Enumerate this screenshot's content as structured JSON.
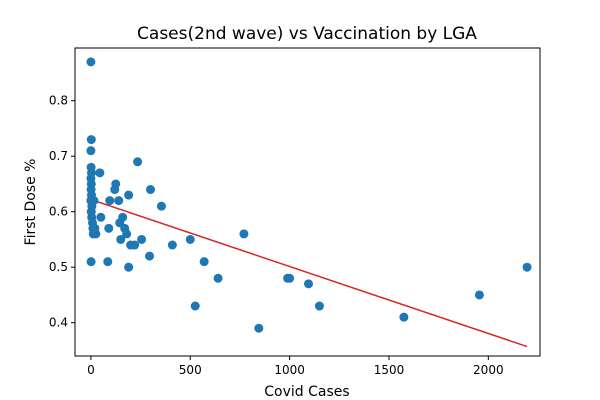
{
  "chart_data": {
    "type": "scatter",
    "title": "Cases(2nd wave) vs Vaccination by LGA",
    "xlabel": "Covid Cases",
    "ylabel": "First Dose %",
    "xlim": [
      -80,
      2260
    ],
    "ylim": [
      0.34,
      0.895
    ],
    "xticks": [
      0,
      500,
      1000,
      1500,
      2000
    ],
    "yticks": [
      0.4,
      0.5,
      0.6,
      0.7,
      0.8
    ],
    "ytick_labels": [
      "0.4",
      "0.5",
      "0.6",
      "0.7",
      "0.8"
    ],
    "grid": false,
    "marker_color": "#1f77b4",
    "trend_color": "#d62728",
    "series": [
      {
        "points": [
          [
            0,
            0.87
          ],
          [
            2,
            0.73
          ],
          [
            0,
            0.71
          ],
          [
            1,
            0.68
          ],
          [
            3,
            0.67
          ],
          [
            0,
            0.66
          ],
          [
            2,
            0.65
          ],
          [
            1,
            0.64
          ],
          [
            3,
            0.63
          ],
          [
            0,
            0.62
          ],
          [
            5,
            0.61
          ],
          [
            2,
            0.6
          ],
          [
            4,
            0.59
          ],
          [
            8,
            0.58
          ],
          [
            1,
            0.51
          ],
          [
            10,
            0.57
          ],
          [
            12,
            0.56
          ],
          [
            15,
            0.62
          ],
          [
            20,
            0.57
          ],
          [
            25,
            0.56
          ],
          [
            45,
            0.67
          ],
          [
            50,
            0.59
          ],
          [
            85,
            0.51
          ],
          [
            90,
            0.57
          ],
          [
            95,
            0.62
          ],
          [
            120,
            0.64
          ],
          [
            125,
            0.65
          ],
          [
            140,
            0.62
          ],
          [
            145,
            0.58
          ],
          [
            150,
            0.55
          ],
          [
            160,
            0.59
          ],
          [
            170,
            0.57
          ],
          [
            180,
            0.56
          ],
          [
            190,
            0.63
          ],
          [
            190,
            0.5
          ],
          [
            200,
            0.54
          ],
          [
            220,
            0.54
          ],
          [
            235,
            0.69
          ],
          [
            255,
            0.55
          ],
          [
            295,
            0.52
          ],
          [
            300,
            0.64
          ],
          [
            355,
            0.61
          ],
          [
            410,
            0.54
          ],
          [
            500,
            0.55
          ],
          [
            525,
            0.43
          ],
          [
            570,
            0.51
          ],
          [
            640,
            0.48
          ],
          [
            770,
            0.56
          ],
          [
            845,
            0.39
          ],
          [
            990,
            0.48
          ],
          [
            1000,
            0.48
          ],
          [
            1095,
            0.47
          ],
          [
            1150,
            0.43
          ],
          [
            1575,
            0.41
          ],
          [
            1955,
            0.45
          ],
          [
            2195,
            0.5
          ]
        ]
      }
    ],
    "trendline": {
      "x": [
        0,
        2195
      ],
      "y": [
        0.622,
        0.357
      ]
    }
  }
}
